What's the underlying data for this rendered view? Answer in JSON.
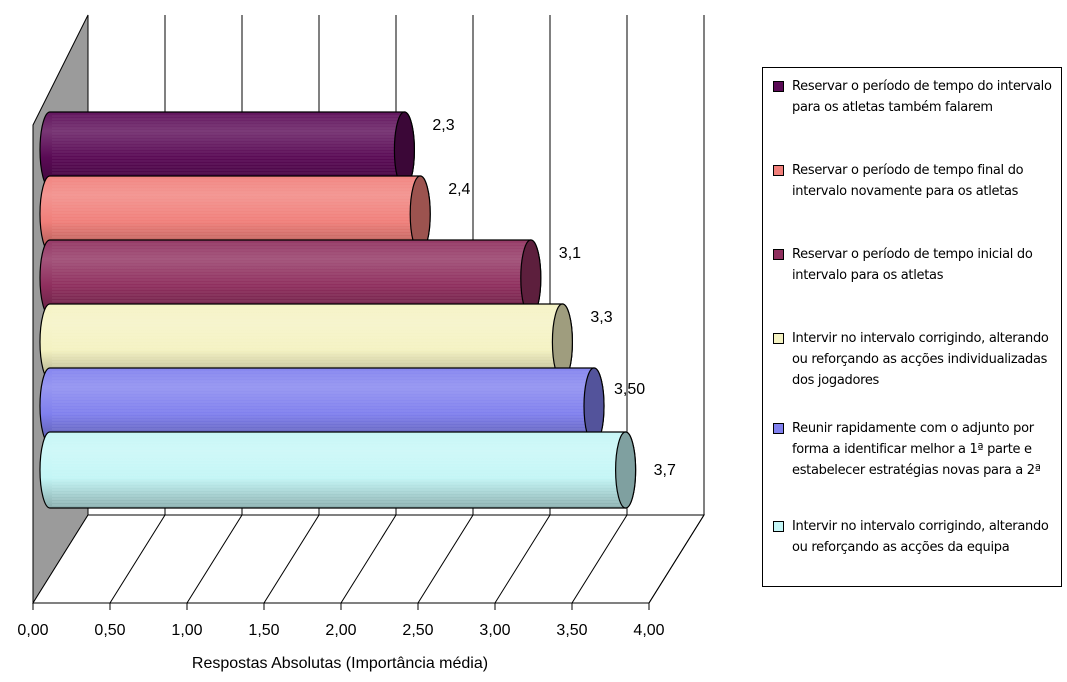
{
  "chart_data": {
    "type": "bar",
    "orientation": "horizontal",
    "style": "3d-cylinder",
    "xlabel": "Respostas Absolutas (Importância média)",
    "xlim": [
      0,
      4
    ],
    "x_ticks": [
      "0,00",
      "0,50",
      "1,00",
      "1,50",
      "2,00",
      "2,50",
      "3,00",
      "3,50",
      "4,00"
    ],
    "grid": true,
    "legend_position": "right",
    "series": [
      {
        "name": "Reservar o período de tempo do intervalo para os atletas também falarem",
        "value": 2.3,
        "label": "2,3",
        "color": "#5a0a55"
      },
      {
        "name": "Reservar o período de tempo final do intervalo novamente para os atletas",
        "value": 2.4,
        "label": "2,4",
        "color": "#f07f7a"
      },
      {
        "name": "Reservar o período de tempo inicial do intervalo para os atletas",
        "value": 3.1,
        "label": "3,1",
        "color": "#8f2f5e"
      },
      {
        "name": "Intervir no intervalo corrigindo, alterando ou reforçando as acções individualizadas dos jogadores",
        "value": 3.3,
        "label": "3,3",
        "color": "#f4f2c2"
      },
      {
        "name": "Reunir rapidamente com o adjunto por forma a identificar melhor a 1ª parte e estabelecer estratégias novas para a 2ª",
        "value": 3.5,
        "label": "3,50",
        "color": "#8080ee"
      },
      {
        "name": "Intervir no intervalo corrigindo, alterando ou reforçando as acções da equipa",
        "value": 3.7,
        "label": "3,7",
        "color": "#c4f6f6"
      }
    ]
  }
}
